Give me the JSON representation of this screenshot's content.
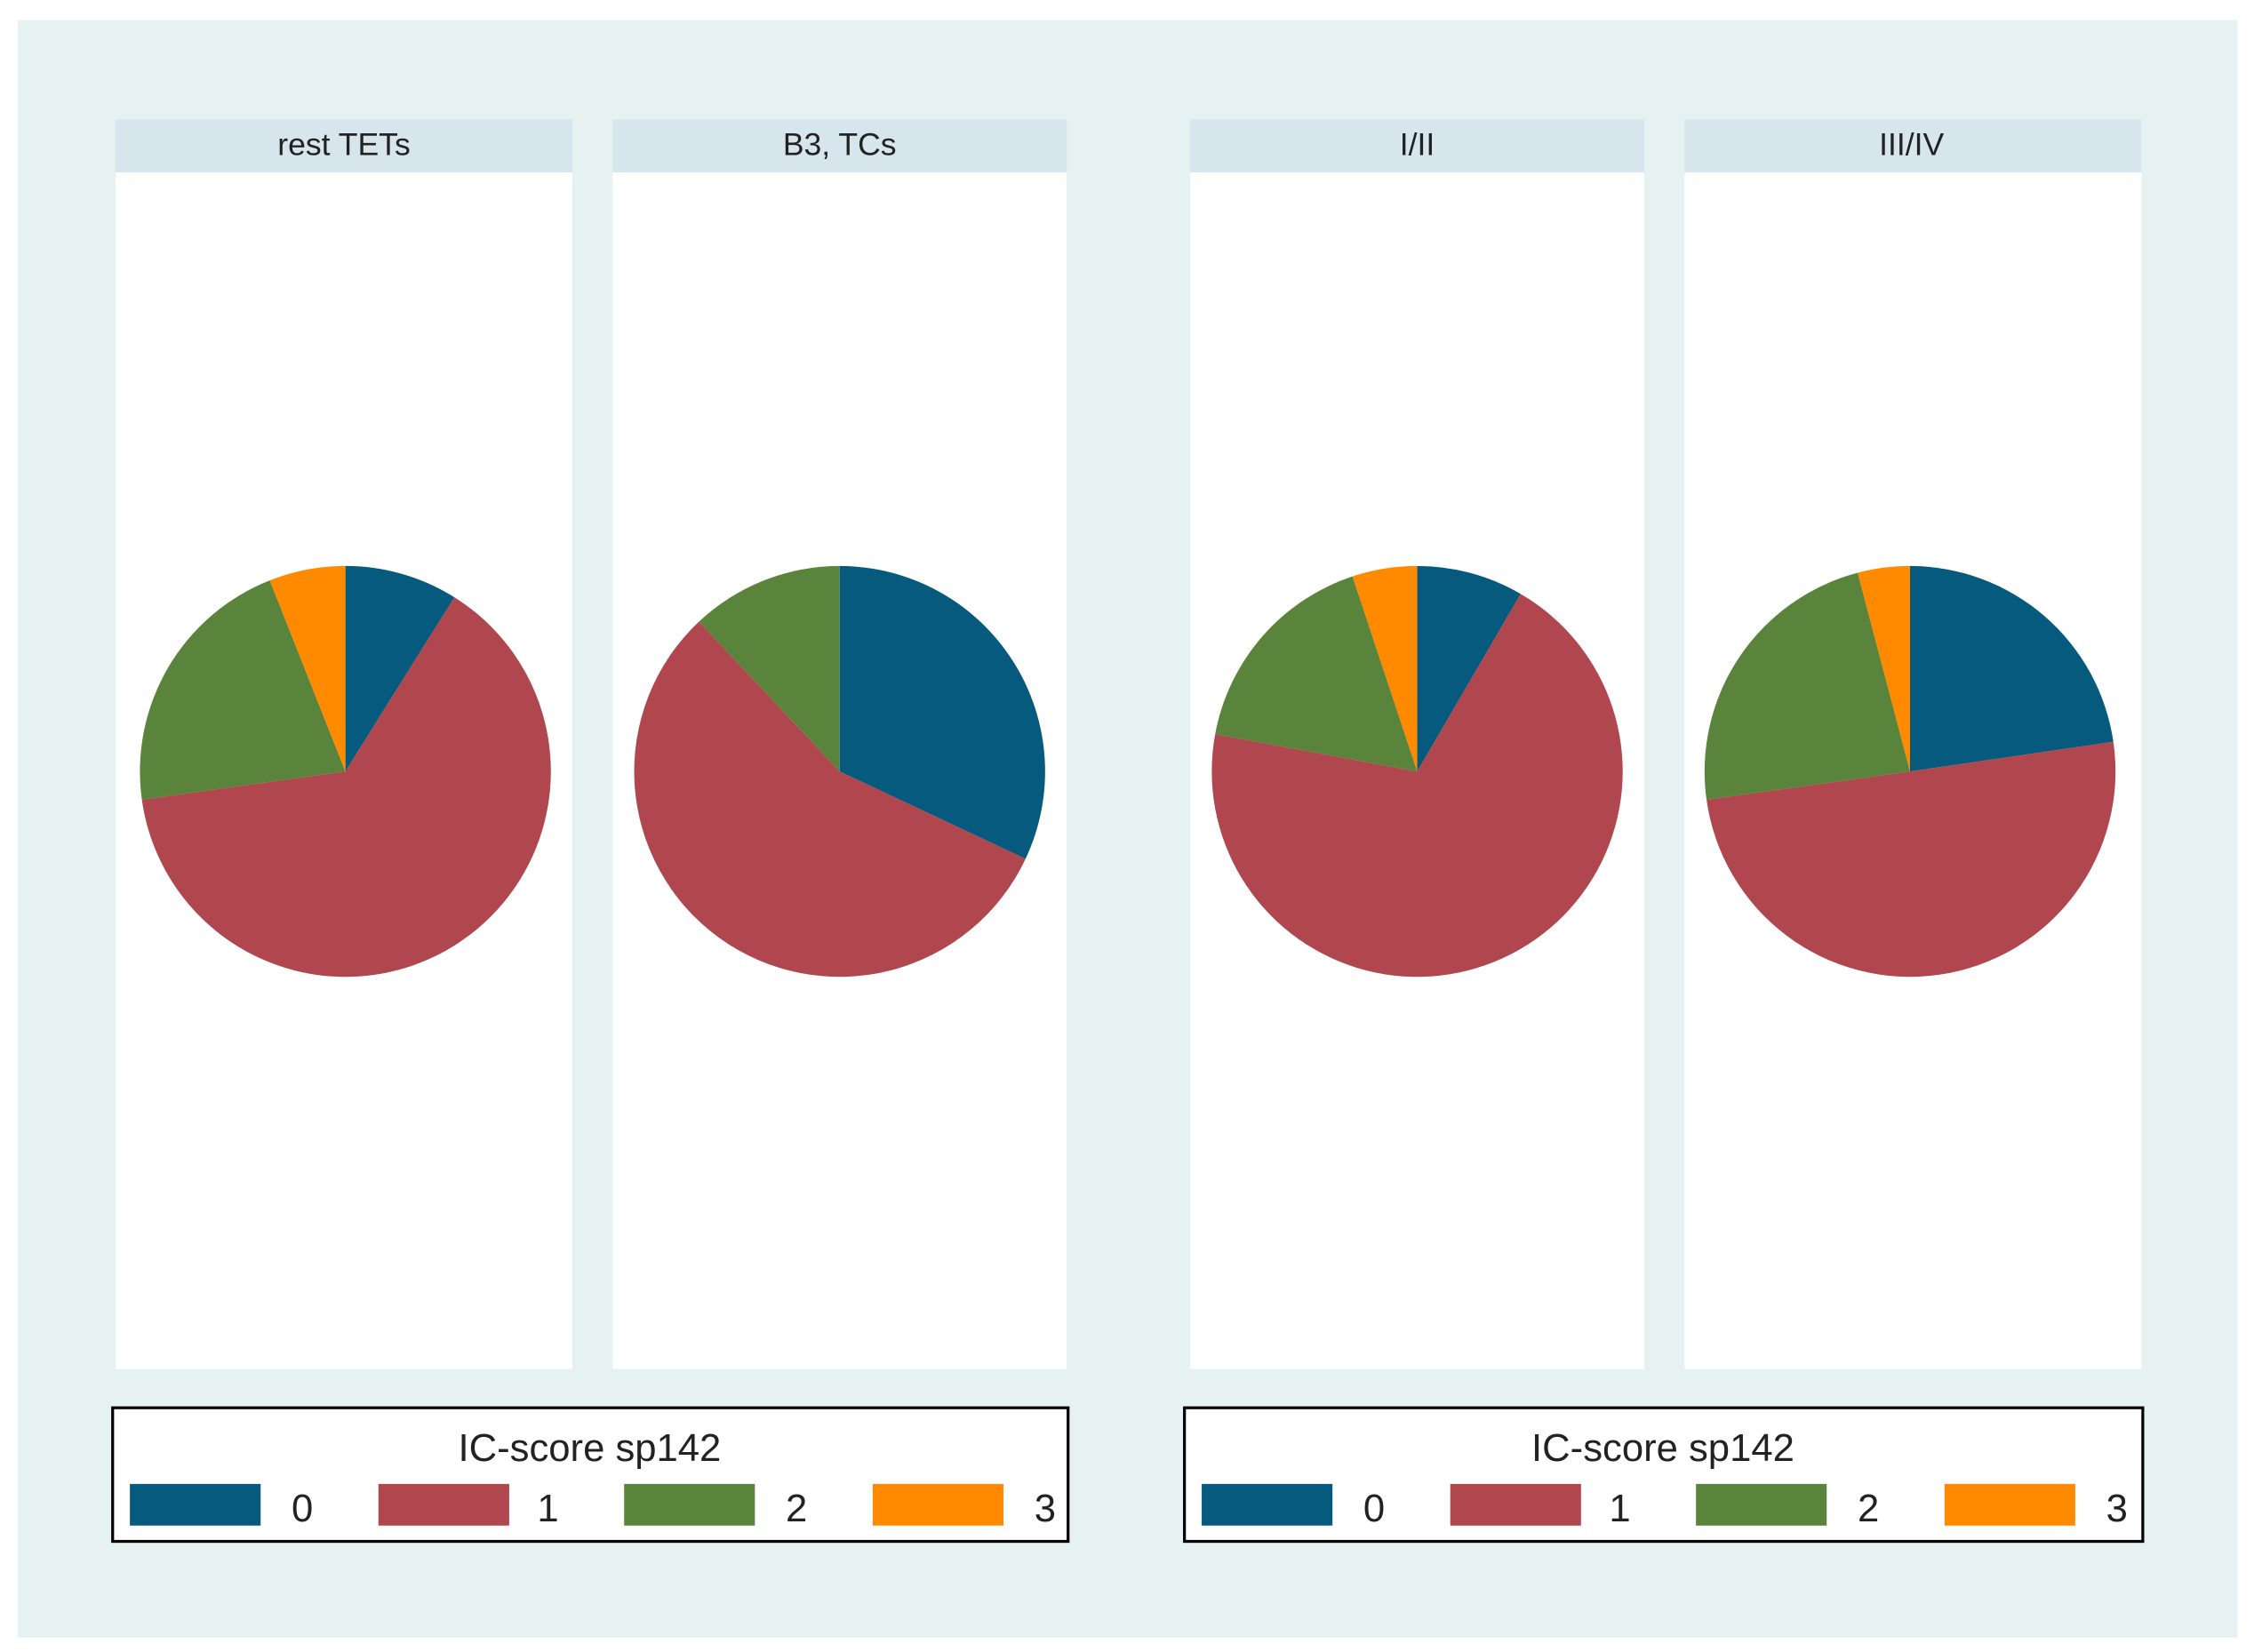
{
  "chart_data": [
    {
      "type": "pie",
      "group": "left",
      "title": "rest TETs",
      "categories": [
        "0",
        "1",
        "2",
        "3"
      ],
      "values": [
        8.9,
        63.9,
        21.2,
        6.0
      ],
      "unit": "percent"
    },
    {
      "type": "pie",
      "group": "left",
      "title": "B3, TCs",
      "categories": [
        "0",
        "1",
        "2",
        "3"
      ],
      "values": [
        32,
        56,
        12,
        0
      ],
      "unit": "percent"
    },
    {
      "type": "pie",
      "group": "right",
      "title": "I/II",
      "categories": [
        "0",
        "1",
        "2",
        "3"
      ],
      "values": [
        8.4,
        69.5,
        17.0,
        5.1
      ],
      "unit": "percent"
    },
    {
      "type": "pie",
      "group": "right",
      "title": "III/IV",
      "categories": [
        "0",
        "1",
        "2",
        "3"
      ],
      "values": [
        22.7,
        50.1,
        23.1,
        4.1
      ],
      "unit": "percent"
    }
  ],
  "legends": [
    {
      "title": "IC-score sp142",
      "items": [
        "0",
        "1",
        "2",
        "3"
      ]
    },
    {
      "title": "IC-score sp142",
      "items": [
        "0",
        "1",
        "2",
        "3"
      ]
    }
  ],
  "colors": {
    "0": "#065a7e",
    "1": "#b0464e",
    "2": "#5a843b",
    "3": "#ff8a00",
    "background": "#e6f1f1",
    "panel_header": "#d6e6ec"
  }
}
